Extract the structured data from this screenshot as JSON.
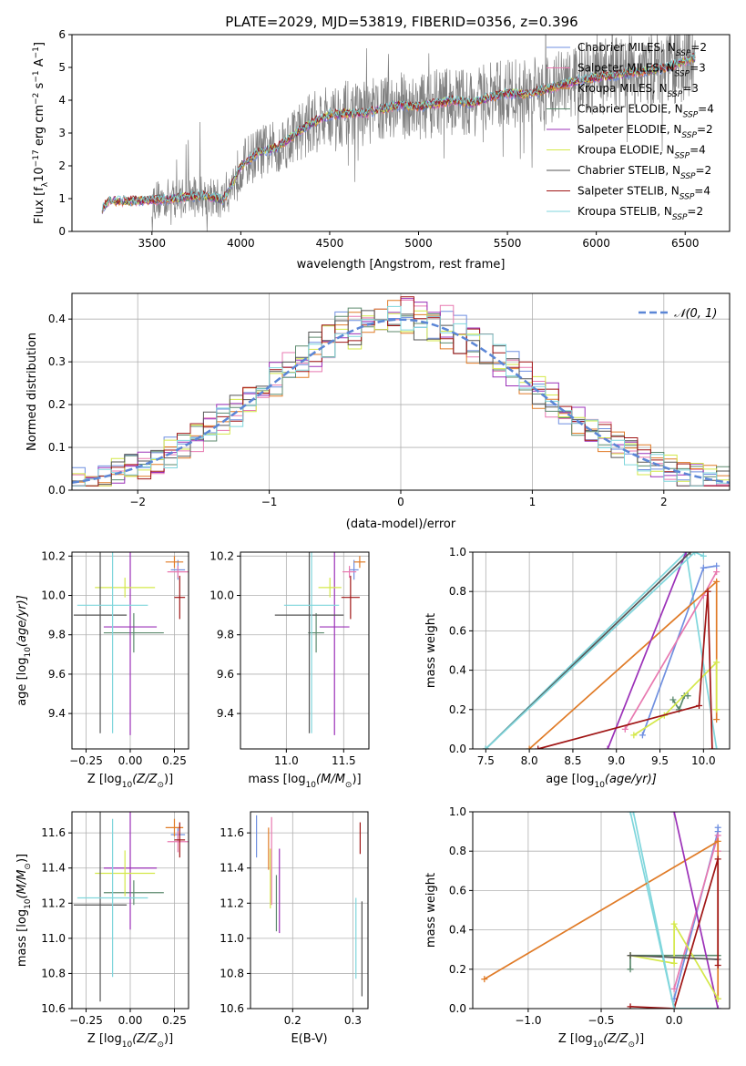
{
  "figure": {
    "title": "PLATE=2029, MJD=53819, FIBERID=0356, z=0.396"
  },
  "series_styles": [
    {
      "name": "Chabrier MILES, N$_{SSP}$=2",
      "label_main": "Chabrier MILES, N",
      "label_sub": "SSP",
      "label_tail": "=2",
      "color": "#6f8fe0"
    },
    {
      "name": "Salpeter MILES, N$_{SSP}$=3",
      "label_main": "Salpeter MILES, N",
      "label_sub": "SSP",
      "label_tail": "=3",
      "color": "#e879b0"
    },
    {
      "name": "Kroupa MILES, N$_{SSP}$=3",
      "label_main": "Kroupa MILES, N",
      "label_sub": "SSP",
      "label_tail": "=3",
      "color": "#e07b27"
    },
    {
      "name": "Chabrier ELODIE, N$_{SSP}$=4",
      "label_main": "Chabrier ELODIE, N",
      "label_sub": "SSP",
      "label_tail": "=4",
      "color": "#5c8a6e"
    },
    {
      "name": "Salpeter ELODIE, N$_{SSP}$=2",
      "label_main": "Salpeter ELODIE, N",
      "label_sub": "SSP",
      "label_tail": "=2",
      "color": "#9b30b8"
    },
    {
      "name": "Kroupa ELODIE, N$_{SSP}$=4",
      "label_main": "Kroupa ELODIE, N",
      "label_sub": "SSP",
      "label_tail": "=4",
      "color": "#d4e84a"
    },
    {
      "name": "Chabrier STELIB, N$_{SSP}$=2",
      "label_main": "Chabrier STELIB, N",
      "label_sub": "SSP",
      "label_tail": "=2",
      "color": "#555555"
    },
    {
      "name": "Salpeter STELIB, N$_{SSP}$=4",
      "label_main": "Salpeter STELIB, N",
      "label_sub": "SSP",
      "label_tail": "=4",
      "color": "#a01515"
    },
    {
      "name": "Kroupa STELIB, N$_{SSP}$=2",
      "label_main": "Kroupa STELIB, N",
      "label_sub": "SSP",
      "label_tail": "=2",
      "color": "#7fd6dc"
    }
  ],
  "chart_data": [
    {
      "id": "spectrum",
      "type": "line",
      "title": "PLATE=2029, MJD=53819, FIBERID=0356, z=0.396",
      "xlabel": "wavelength [Angstrom, rest frame]",
      "ylabel_pre": "Flux [f",
      "ylabel_sub": "λ",
      "ylabel_mid": "10",
      "ylabel_sup1": "−17",
      "ylabel_mid2": " erg cm",
      "ylabel_sup2": "−2",
      "ylabel_mid3": " s",
      "ylabel_sup3": "−1",
      "ylabel_mid4": " A",
      "ylabel_sup4": "−1",
      "ylabel_end": "]",
      "xlim": [
        3050,
        6750
      ],
      "ylim": [
        0,
        6
      ],
      "xticks": [
        3500,
        4000,
        4500,
        5000,
        5500,
        6000,
        6500
      ],
      "yticks": [
        0,
        1,
        2,
        3,
        4,
        5,
        6
      ],
      "data_color": "#808080",
      "model_curve": {
        "x": [
          3220,
          3260,
          3300,
          3400,
          3500,
          3600,
          3700,
          3800,
          3900,
          3950,
          4000,
          4100,
          4200,
          4300,
          4400,
          4500,
          4600,
          4700,
          4800,
          4900,
          5000,
          5100,
          5200,
          5300,
          5400,
          5500,
          5600,
          5700,
          5800,
          5900,
          6000,
          6100,
          6200,
          6300,
          6400,
          6500,
          6560
        ],
        "y": [
          0.7,
          0.95,
          0.92,
          0.93,
          0.95,
          1.0,
          1.05,
          1.1,
          0.95,
          1.4,
          2.0,
          2.4,
          2.55,
          2.95,
          3.3,
          3.55,
          3.6,
          3.6,
          3.75,
          3.85,
          3.8,
          3.9,
          4.0,
          3.9,
          4.1,
          4.2,
          4.2,
          4.3,
          4.45,
          4.6,
          4.7,
          4.75,
          4.85,
          4.9,
          5.0,
          5.2,
          5.3
        ]
      },
      "data_range": [
        3500,
        6560
      ],
      "legend_loc": "right"
    },
    {
      "id": "residuals",
      "type": "step",
      "xlabel": "(data-model)/error",
      "ylabel": "Normed distribution",
      "xlim": [
        -2.5,
        2.5
      ],
      "ylim": [
        0,
        0.46
      ],
      "xticks": [
        -2,
        -1,
        0,
        1,
        2
      ],
      "yticks": [
        0,
        0.1,
        0.2,
        0.3,
        0.4
      ],
      "bin_width": 0.1,
      "gaussian_label": "𝒩(0, 1)",
      "gaussian_color": "#5b86d6",
      "grid": true
    },
    {
      "id": "age_vs_Z",
      "type": "errorbar",
      "xlabel_pre": "Z [log",
      "xlabel_sub": "10",
      "xlabel_post": "(Z/Z",
      "xlabel_sub2": "⊙",
      "xlabel_end": ")]",
      "ylabel_pre": "age  [log",
      "ylabel_sub": "10",
      "ylabel_post": "(age/yr)]",
      "xlim": [
        -0.33,
        0.33
      ],
      "ylim": [
        9.22,
        10.22
      ],
      "xticks": [
        -0.25,
        0.0,
        0.25
      ],
      "yticks": [
        9.4,
        9.6,
        9.8,
        10.0,
        10.2
      ],
      "points": [
        {
          "x": 0.27,
          "xerr": 0.04,
          "y": 10.13,
          "yerr": 0.05
        },
        {
          "x": 0.27,
          "xerr": 0.06,
          "y": 10.12,
          "yerr": 0.03
        },
        {
          "x": 0.25,
          "xerr": 0.05,
          "y": 10.17,
          "yerr": 0.03
        },
        {
          "x": 0.02,
          "xerr": 0.17,
          "y": 9.81,
          "yerr": 0.1
        },
        {
          "x": 0.0,
          "xerr": 0.15,
          "y": 9.84,
          "yerr": 0.55
        },
        {
          "x": -0.03,
          "xerr": 0.17,
          "y": 10.04,
          "yerr": 0.05
        },
        {
          "x": -0.17,
          "xerr": 0.15,
          "y": 9.9,
          "yerr": 0.6
        },
        {
          "x": 0.28,
          "xerr": 0.03,
          "y": 9.99,
          "yerr": 0.11
        },
        {
          "x": -0.1,
          "xerr": 0.2,
          "y": 9.95,
          "yerr": 0.65
        }
      ]
    },
    {
      "id": "age_vs_mass",
      "type": "errorbar",
      "xlabel_pre": "mass [log",
      "xlabel_sub": "10",
      "xlabel_post": "(M/M",
      "xlabel_sub2": "⊙",
      "xlabel_end": ")]",
      "xlim": [
        10.6,
        11.72
      ],
      "ylim": [
        9.22,
        10.22
      ],
      "xticks": [
        11.0,
        11.5
      ],
      "yticks": [
        9.4,
        9.6,
        9.8,
        10.0,
        10.2
      ],
      "points": [
        {
          "x": 11.59,
          "xerr": 0.04,
          "y": 10.13,
          "yerr": 0.05
        },
        {
          "x": 11.55,
          "xerr": 0.06,
          "y": 10.12,
          "yerr": 0.03
        },
        {
          "x": 11.64,
          "xerr": 0.05,
          "y": 10.17,
          "yerr": 0.03
        },
        {
          "x": 11.26,
          "xerr": 0.07,
          "y": 9.81,
          "yerr": 0.1
        },
        {
          "x": 11.42,
          "xerr": 0.13,
          "y": 9.84,
          "yerr": 0.55
        },
        {
          "x": 11.38,
          "xerr": 0.1,
          "y": 10.04,
          "yerr": 0.05
        },
        {
          "x": 11.2,
          "xerr": 0.3,
          "y": 9.9,
          "yerr": 0.6
        },
        {
          "x": 11.56,
          "xerr": 0.08,
          "y": 9.99,
          "yerr": 0.11
        },
        {
          "x": 11.22,
          "xerr": 0.24,
          "y": 9.95,
          "yerr": 0.65
        }
      ]
    },
    {
      "id": "weight_vs_age",
      "type": "line",
      "xlabel_pre": "age  [log",
      "xlabel_sub": "10",
      "xlabel_post": "(age/yr)]",
      "ylabel": "mass weight",
      "xlim": [
        7.35,
        10.3
      ],
      "ylim": [
        0,
        1
      ],
      "xticks": [
        7.5,
        8.0,
        8.5,
        9.0,
        9.5,
        10.0
      ],
      "yticks": [
        0.0,
        0.2,
        0.4,
        0.6,
        0.8,
        1.0
      ],
      "series": [
        {
          "x": [
            7.5,
            9.8,
            10.15
          ],
          "y": [
            0.0,
            1.0,
            0.0
          ]
        },
        {
          "x": [
            9.3,
            10.0,
            10.15
          ],
          "y": [
            0.07,
            0.92,
            0.93
          ]
        },
        {
          "x": [
            9.1,
            10.0,
            10.15
          ],
          "y": [
            0.1,
            0.78,
            0.9
          ]
        },
        {
          "x": [
            8.0,
            10.15,
            10.15
          ],
          "y": [
            0.0,
            0.85,
            0.15
          ]
        },
        {
          "x": [
            9.65,
            9.72,
            9.78,
            9.82
          ],
          "y": [
            0.25,
            0.2,
            0.27,
            0.27
          ]
        },
        {
          "x": [
            8.9,
            9.8
          ],
          "y": [
            0.0,
            1.0
          ]
        },
        {
          "x": [
            9.2,
            9.55,
            10.15,
            10.15
          ],
          "y": [
            0.07,
            0.17,
            0.44,
            0.2
          ]
        },
        {
          "x": [
            7.5,
            9.85
          ],
          "y": [
            0.0,
            1.0
          ]
        },
        {
          "x": [
            8.1,
            9.95,
            10.05,
            10.1
          ],
          "y": [
            0.0,
            0.22,
            0.8,
            0.0
          ]
        },
        {
          "x": [
            7.5,
            9.9,
            10.0
          ],
          "y": [
            0.0,
            1.0,
            0.98
          ]
        }
      ],
      "series_colors": [
        "#7fd6dc",
        "#6f8fe0",
        "#e879b0",
        "#e07b27",
        "#5c8a6e",
        "#9b30b8",
        "#d4e84a",
        "#555555",
        "#a01515",
        "#7fd6dc"
      ],
      "grid": true
    },
    {
      "id": "mass_vs_Z",
      "type": "errorbar",
      "xlabel_pre": "Z [log",
      "xlabel_sub": "10",
      "xlabel_post": "(Z/Z",
      "xlabel_sub2": "⊙",
      "xlabel_end": ")]",
      "ylabel_pre": "mass [log",
      "ylabel_sub": "10",
      "ylabel_post": "(M/M",
      "ylabel_sub2": "⊙",
      "ylabel_end": ")]",
      "xlim": [
        -0.33,
        0.33
      ],
      "ylim": [
        10.6,
        11.72
      ],
      "xticks": [
        -0.25,
        0.0,
        0.25
      ],
      "yticks": [
        10.6,
        10.8,
        11.0,
        11.2,
        11.4,
        11.6
      ],
      "points": [
        {
          "x": 0.27,
          "xerr": 0.04,
          "y": 11.59,
          "yerr": 0.04
        },
        {
          "x": 0.27,
          "xerr": 0.06,
          "y": 11.55,
          "yerr": 0.06
        },
        {
          "x": 0.25,
          "xerr": 0.05,
          "y": 11.63,
          "yerr": 0.05
        },
        {
          "x": 0.02,
          "xerr": 0.17,
          "y": 11.26,
          "yerr": 0.07
        },
        {
          "x": 0.0,
          "xerr": 0.15,
          "y": 11.4,
          "yerr": 0.35
        },
        {
          "x": -0.03,
          "xerr": 0.17,
          "y": 11.37,
          "yerr": 0.13
        },
        {
          "x": -0.17,
          "xerr": 0.15,
          "y": 11.19,
          "yerr": 0.55
        },
        {
          "x": 0.28,
          "xerr": 0.03,
          "y": 11.56,
          "yerr": 0.1
        },
        {
          "x": -0.1,
          "xerr": 0.2,
          "y": 11.23,
          "yerr": 0.45
        }
      ]
    },
    {
      "id": "mass_vs_ebv",
      "type": "errorbar",
      "xlabel": "E(B-V)",
      "xlim": [
        0.13,
        0.325
      ],
      "xticks": [
        0.2,
        0.3
      ],
      "ylim": [
        10.6,
        11.72
      ],
      "yticks": [
        10.6,
        10.8,
        11.0,
        11.2,
        11.4,
        11.6
      ],
      "points": [
        {
          "x": 0.14,
          "xerr": 0,
          "y": 11.58,
          "yerr": 0.12
        },
        {
          "x": 0.165,
          "xerr": 0,
          "y": 11.44,
          "yerr": 0.25
        },
        {
          "x": 0.16,
          "xerr": 0,
          "y": 11.51,
          "yerr": 0.12
        },
        {
          "x": 0.173,
          "xerr": 0,
          "y": 11.2,
          "yerr": 0.16
        },
        {
          "x": 0.178,
          "xerr": 0,
          "y": 11.27,
          "yerr": 0.24
        },
        {
          "x": 0.163,
          "xerr": 0,
          "y": 11.34,
          "yerr": 0.17
        },
        {
          "x": 0.315,
          "xerr": 0,
          "y": 10.94,
          "yerr": 0.27
        },
        {
          "x": 0.312,
          "xerr": 0,
          "y": 11.57,
          "yerr": 0.09
        },
        {
          "x": 0.305,
          "xerr": 0,
          "y": 11.0,
          "yerr": 0.23
        }
      ]
    },
    {
      "id": "weight_vs_Z",
      "type": "line",
      "xlabel_pre": "Z [log",
      "xlabel_sub": "10",
      "xlabel_post": "(Z/Z",
      "xlabel_sub2": "⊙",
      "xlabel_end": ")]",
      "ylabel": "mass weight",
      "xlim": [
        -1.38,
        0.38
      ],
      "ylim": [
        0,
        1
      ],
      "xticks": [
        -1.0,
        -0.5,
        0.0
      ],
      "yticks": [
        0.0,
        0.2,
        0.4,
        0.6,
        0.8,
        1.0
      ],
      "series": [
        {
          "x": [
            -0.3,
            0.0,
            0.3
          ],
          "y": [
            1.0,
            0.0,
            0.0
          ]
        },
        {
          "x": [
            0.0,
            0.3,
            0.3
          ],
          "y": [
            0.05,
            0.9,
            0.92
          ]
        },
        {
          "x": [
            0.0,
            0.3,
            0.3
          ],
          "y": [
            0.1,
            0.88,
            0.8
          ]
        },
        {
          "x": [
            -1.3,
            0.3,
            0.3
          ],
          "y": [
            0.15,
            0.85,
            0.05
          ]
        },
        {
          "x": [
            -0.3,
            -0.3,
            0.3
          ],
          "y": [
            0.2,
            0.27,
            0.27
          ]
        },
        {
          "x": [
            0.0,
            0.3
          ],
          "y": [
            1.0,
            0.0
          ]
        },
        {
          "x": [
            -0.3,
            0.0,
            0.0,
            0.3
          ],
          "y": [
            0.27,
            0.23,
            0.43,
            0.05
          ]
        },
        {
          "x": [
            -0.3,
            0.3
          ],
          "y": [
            0.27,
            0.25
          ]
        },
        {
          "x": [
            -0.3,
            0.0,
            0.3,
            0.3
          ],
          "y": [
            0.01,
            0.0,
            0.76,
            0.22
          ]
        },
        {
          "x": [
            -0.28,
            0.0
          ],
          "y": [
            1.0,
            0.0
          ]
        }
      ],
      "series_colors": [
        "#7fd6dc",
        "#6f8fe0",
        "#e879b0",
        "#e07b27",
        "#5c8a6e",
        "#9b30b8",
        "#d4e84a",
        "#555555",
        "#a01515",
        "#7fd6dc"
      ],
      "grid": true
    }
  ]
}
